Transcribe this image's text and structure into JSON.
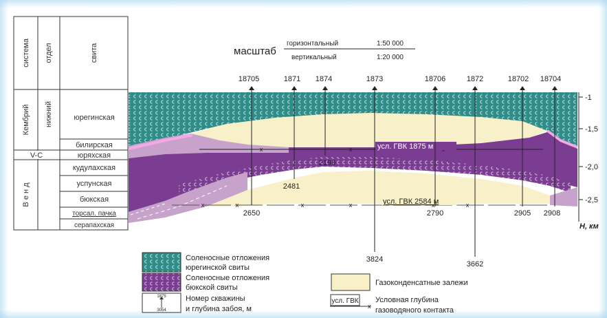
{
  "scale": {
    "label": "масштаб",
    "horizontal_label": "горизонтальный",
    "horizontal_value": "1:50 000",
    "vertical_label": "вертикальный",
    "vertical_value": "1:20 000"
  },
  "column_headers": {
    "system": "система",
    "series": "отдел",
    "suite": "свита"
  },
  "stratigraphy": {
    "system_cambrian": "Кембрий",
    "series_lower": "нижний",
    "system_vc": "V-C",
    "system_vend": "В е н д",
    "suites": [
      "юрегинская",
      "билирская",
      "юряхская",
      "кудулахская",
      "успунская",
      "бюкская",
      "торсал. пачка",
      "серапахская"
    ]
  },
  "wells_top": [
    "18705",
    "1871",
    "1874",
    "1873",
    "18706",
    "1872",
    "18702",
    "18704"
  ],
  "well_depths": [
    "2190",
    "2481",
    "2650",
    "3824",
    "2790",
    "3662",
    "2905",
    "2908"
  ],
  "gwc": {
    "upper": "усл. ГВК 1875 м",
    "lower": "усл. ГВК 2584 м"
  },
  "depth_axis": {
    "ticks": [
      "-1",
      "-1,5",
      "-2,0",
      "-2,5"
    ],
    "unit": "H, км"
  },
  "legend": {
    "salt_yureg_line1": "Соленосные отложения",
    "salt_yureg_line2": "юрегинской свиты",
    "salt_byuk_line1": "Соленосные отложения",
    "salt_byuk_line2": "бюкской свиты",
    "well_sample_num": "1875",
    "well_sample_depth": "3054",
    "well_line1": "Номер скважины",
    "well_line2": "и глубина забоя, м",
    "gas": "Газоконденсатные залежи",
    "gvk_box": "усл. ГВК",
    "gvk_line1": "Условная глубина",
    "gvk_line2": "газоводяного контакта"
  },
  "colors": {
    "teal": "#2e8c89",
    "purple": "#7a3d92",
    "light_purple": "#c7a3cb",
    "gas": "#f7f0c9",
    "pink": "#f6a7e6"
  }
}
